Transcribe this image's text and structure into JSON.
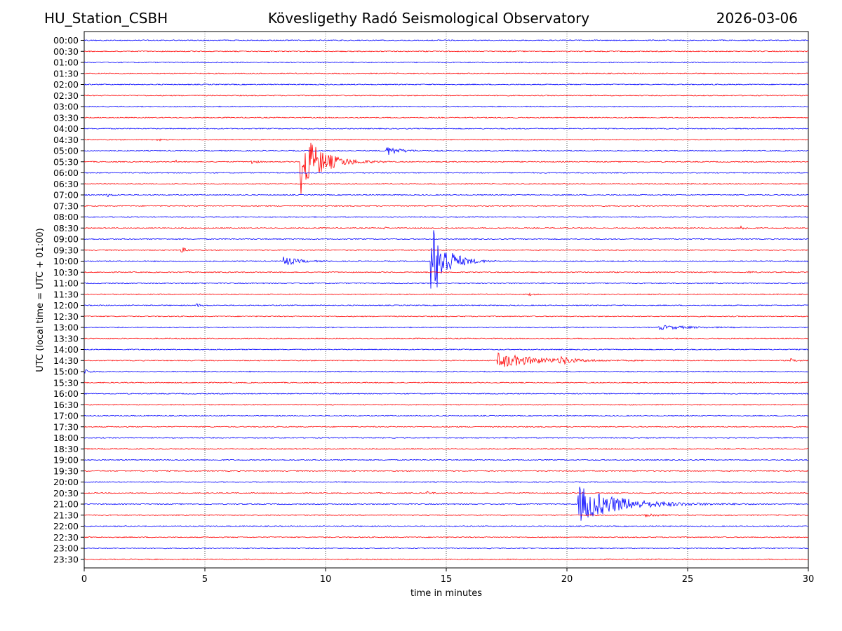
{
  "header": {
    "station": "HU_Station_CSBH",
    "observatory": "Kövesligethy Radó Seismological Observatory",
    "date": "2026-03-06"
  },
  "chart_data": {
    "type": "line",
    "title": "Kövesligethy Radó Seismological Observatory",
    "xlabel": "time in minutes",
    "ylabel": "UTC (local time = UTC + 01:00)",
    "xlim": [
      0,
      30
    ],
    "x_ticks": [
      0,
      5,
      10,
      15,
      20,
      25,
      30
    ],
    "x_tick_labels": [
      "0",
      "5",
      "10",
      "15",
      "20",
      "25",
      "30"
    ],
    "grid": "vertical dotted at 5-minute intervals",
    "row_labels": [
      "00:00",
      "00:30",
      "01:00",
      "01:30",
      "02:00",
      "02:30",
      "03:00",
      "03:30",
      "04:00",
      "04:30",
      "05:00",
      "05:30",
      "06:00",
      "06:30",
      "07:00",
      "07:30",
      "08:00",
      "08:30",
      "09:00",
      "09:30",
      "10:00",
      "10:30",
      "11:00",
      "11:30",
      "12:00",
      "12:30",
      "13:00",
      "13:30",
      "14:00",
      "14:30",
      "15:00",
      "15:30",
      "16:00",
      "16:30",
      "17:00",
      "17:30",
      "18:00",
      "18:30",
      "19:00",
      "19:30",
      "20:00",
      "20:30",
      "21:00",
      "21:30",
      "22:00",
      "22:30",
      "23:00",
      "23:30"
    ],
    "series_colors": [
      "#0000ff",
      "#ff0000"
    ],
    "events": [
      {
        "row": "04:30",
        "t": 3.0,
        "amp": 3,
        "dur": 0.4
      },
      {
        "row": "05:00",
        "t": 12.5,
        "amp": 7,
        "dur": 1.6
      },
      {
        "row": "05:30",
        "t": 3.8,
        "amp": 2,
        "dur": 0.2
      },
      {
        "row": "05:30",
        "t": 6.9,
        "amp": 5,
        "dur": 0.5
      },
      {
        "row": "05:30",
        "t": 8.95,
        "amp": 48,
        "dur": 2.5
      },
      {
        "row": "07:00",
        "t": 0.9,
        "amp": 3,
        "dur": 0.6
      },
      {
        "row": "08:30",
        "t": 12.4,
        "amp": 2,
        "dur": 0.3
      },
      {
        "row": "08:30",
        "t": 27.2,
        "amp": 3,
        "dur": 0.6
      },
      {
        "row": "09:30",
        "t": 4.0,
        "amp": 5,
        "dur": 0.6
      },
      {
        "row": "10:00",
        "t": 8.2,
        "amp": 8,
        "dur": 1.6
      },
      {
        "row": "10:00",
        "t": 14.35,
        "amp": 62,
        "dur": 1.8
      },
      {
        "row": "10:30",
        "t": 27.5,
        "amp": 2,
        "dur": 0.4
      },
      {
        "row": "11:30",
        "t": 18.4,
        "amp": 2,
        "dur": 0.6
      },
      {
        "row": "12:00",
        "t": 4.6,
        "amp": 3,
        "dur": 0.6
      },
      {
        "row": "13:00",
        "t": 23.8,
        "amp": 3,
        "dur": 3.5
      },
      {
        "row": "14:30",
        "t": 17.1,
        "amp": 11,
        "dur": 5.0
      },
      {
        "row": "14:30",
        "t": 19.7,
        "amp": 6,
        "dur": 1.0
      },
      {
        "row": "14:30",
        "t": 29.2,
        "amp": 3,
        "dur": 0.8
      },
      {
        "row": "15:00",
        "t": 0.0,
        "amp": 3,
        "dur": 0.8
      },
      {
        "row": "20:30",
        "t": 14.2,
        "amp": 2,
        "dur": 0.6
      },
      {
        "row": "21:00",
        "t": 20.45,
        "amp": 26,
        "dur": 5.2
      },
      {
        "row": "21:30",
        "t": 23.2,
        "amp": 4,
        "dur": 1.2
      }
    ]
  }
}
